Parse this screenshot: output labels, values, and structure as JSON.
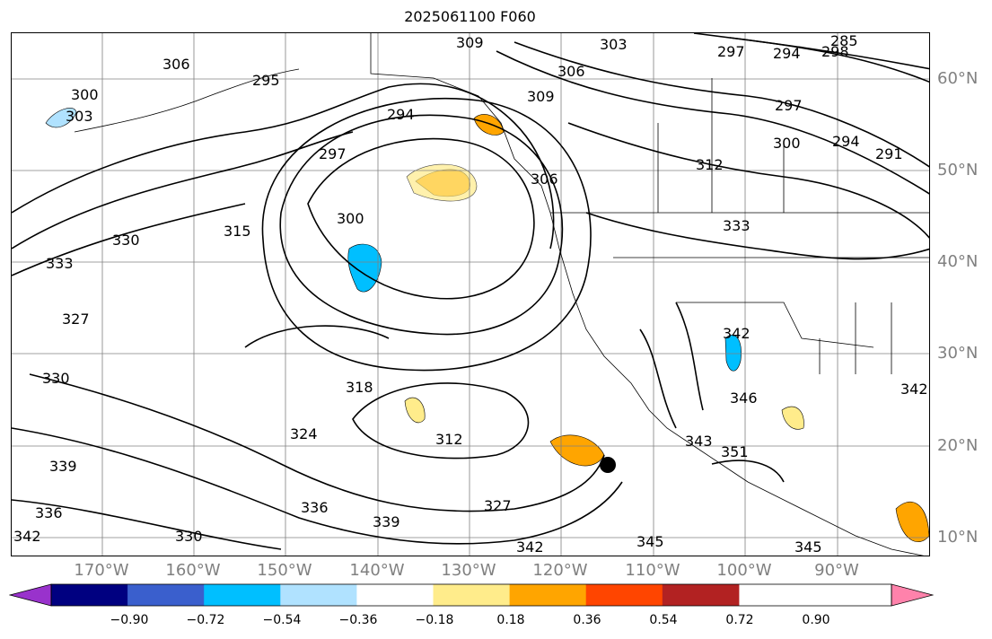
{
  "title": "2025061100 F060",
  "lon_labels": [
    "170°W",
    "160°W",
    "150°W",
    "140°W",
    "130°W",
    "120°W",
    "110°W",
    "100°W",
    "90°W"
  ],
  "lat_labels": [
    "60°N",
    "50°N",
    "40°N",
    "30°N",
    "20°N",
    "10°N"
  ],
  "colorbar": {
    "ticks": [
      "−0.90",
      "−0.72",
      "−0.54",
      "−0.36",
      "−0.18",
      "0.18",
      "0.36",
      "0.54",
      "0.72",
      "0.90"
    ],
    "colors": [
      "#9932cc",
      "#000080",
      "#3a5fcd",
      "#00bfff",
      "#b0e2ff",
      "#ffffff",
      "#ffec8b",
      "#ffa500",
      "#ff4500",
      "#b22222",
      "#ff82ab"
    ]
  },
  "contour_labels": [
    "309",
    "303",
    "306",
    "297",
    "294",
    "285",
    "298",
    "297",
    "294",
    "291",
    "300",
    "300",
    "303",
    "306",
    "295",
    "309",
    "297",
    "294",
    "312",
    "306",
    "300",
    "315",
    "333",
    "330",
    "333",
    "327",
    "330",
    "318",
    "324",
    "312",
    "342",
    "346",
    "343",
    "351",
    "339",
    "336",
    "339",
    "327",
    "330",
    "342",
    "345",
    "345",
    "342",
    "336",
    "342"
  ],
  "features": {
    "marker": "cyclone-center-dot",
    "map_extent": {
      "lon": [
        -178,
        -80
      ],
      "lat": [
        8,
        65
      ]
    }
  }
}
